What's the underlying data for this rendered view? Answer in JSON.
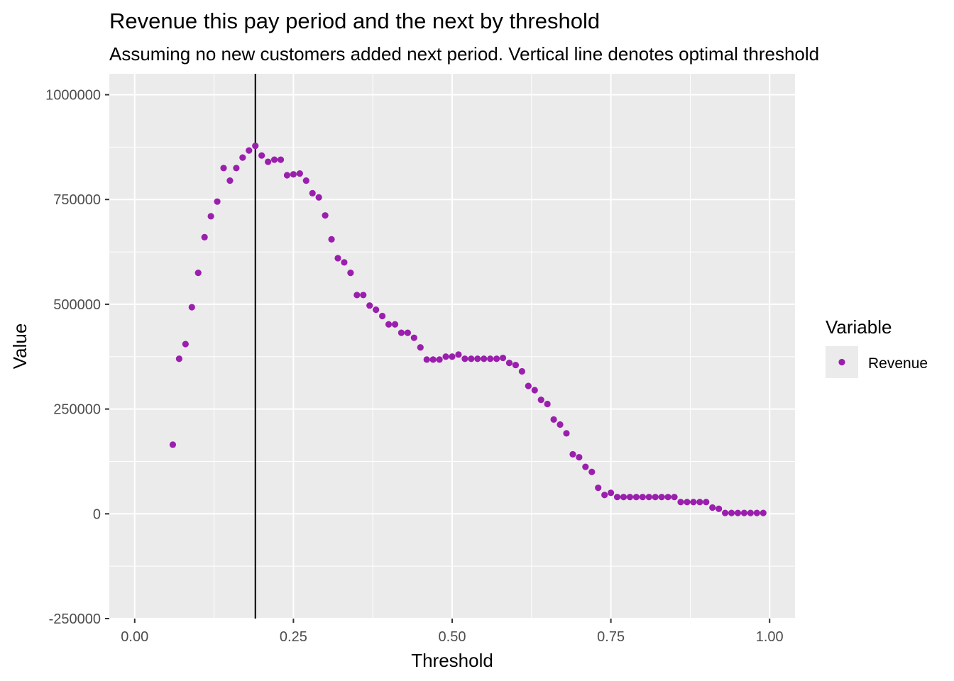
{
  "chart_data": {
    "type": "scatter",
    "title": "Revenue this pay period and the next by threshold",
    "subtitle": "Assuming no new customers added next period. Vertical line denotes optimal threshold",
    "xlabel": "Threshold",
    "ylabel": "Value",
    "xlim": [
      -0.04,
      1.04
    ],
    "ylim": [
      -250000,
      1050000
    ],
    "x_ticks": [
      0,
      0.25,
      0.5,
      0.75,
      1.0
    ],
    "x_tick_labels": [
      "0.00",
      "0.25",
      "0.50",
      "0.75",
      "1.00"
    ],
    "y_ticks": [
      -250000,
      0,
      250000,
      500000,
      750000,
      1000000
    ],
    "y_tick_labels": [
      "-250000",
      "0",
      "250000",
      "500000",
      "750000",
      "1000000"
    ],
    "grid": true,
    "vline_x": 0.19,
    "legend": {
      "title": "Variable",
      "position": "right"
    },
    "series": [
      {
        "name": "Revenue",
        "color": "#9a1fad",
        "x": [
          0.06,
          0.07,
          0.08,
          0.09,
          0.1,
          0.11,
          0.12,
          0.13,
          0.14,
          0.15,
          0.16,
          0.17,
          0.18,
          0.19,
          0.2,
          0.21,
          0.22,
          0.23,
          0.24,
          0.25,
          0.26,
          0.27,
          0.28,
          0.29,
          0.3,
          0.31,
          0.32,
          0.33,
          0.34,
          0.35,
          0.36,
          0.37,
          0.38,
          0.39,
          0.4,
          0.41,
          0.42,
          0.43,
          0.44,
          0.45,
          0.46,
          0.47,
          0.48,
          0.49,
          0.5,
          0.51,
          0.52,
          0.53,
          0.54,
          0.55,
          0.56,
          0.57,
          0.58,
          0.59,
          0.6,
          0.61,
          0.62,
          0.63,
          0.64,
          0.65,
          0.66,
          0.67,
          0.68,
          0.69,
          0.7,
          0.71,
          0.72,
          0.73,
          0.74,
          0.75,
          0.76,
          0.77,
          0.78,
          0.79,
          0.8,
          0.81,
          0.82,
          0.83,
          0.84,
          0.85,
          0.86,
          0.87,
          0.88,
          0.89,
          0.9,
          0.91,
          0.92,
          0.93,
          0.94,
          0.95,
          0.96,
          0.97,
          0.98,
          0.99
        ],
        "values": [
          165000,
          370000,
          405000,
          493000,
          575000,
          660000,
          710000,
          745000,
          825000,
          795000,
          825000,
          850000,
          867000,
          878000,
          855000,
          840000,
          845000,
          845000,
          808000,
          810000,
          812000,
          795000,
          765000,
          755000,
          712000,
          655000,
          610000,
          600000,
          575000,
          522000,
          522000,
          497000,
          487000,
          472000,
          452000,
          452000,
          432000,
          432000,
          420000,
          397000,
          368000,
          368000,
          368000,
          375000,
          375000,
          380000,
          370000,
          370000,
          370000,
          370000,
          370000,
          370000,
          372000,
          360000,
          355000,
          340000,
          305000,
          295000,
          272000,
          262000,
          225000,
          213000,
          192000,
          142000,
          135000,
          112000,
          100000,
          62000,
          45000,
          50000,
          40000,
          40000,
          40000,
          40000,
          40000,
          40000,
          40000,
          40000,
          40000,
          40000,
          28000,
          28000,
          28000,
          28000,
          28000,
          15000,
          12000,
          2000,
          2000,
          2000,
          2000,
          2000,
          2000,
          2000
        ]
      }
    ]
  }
}
